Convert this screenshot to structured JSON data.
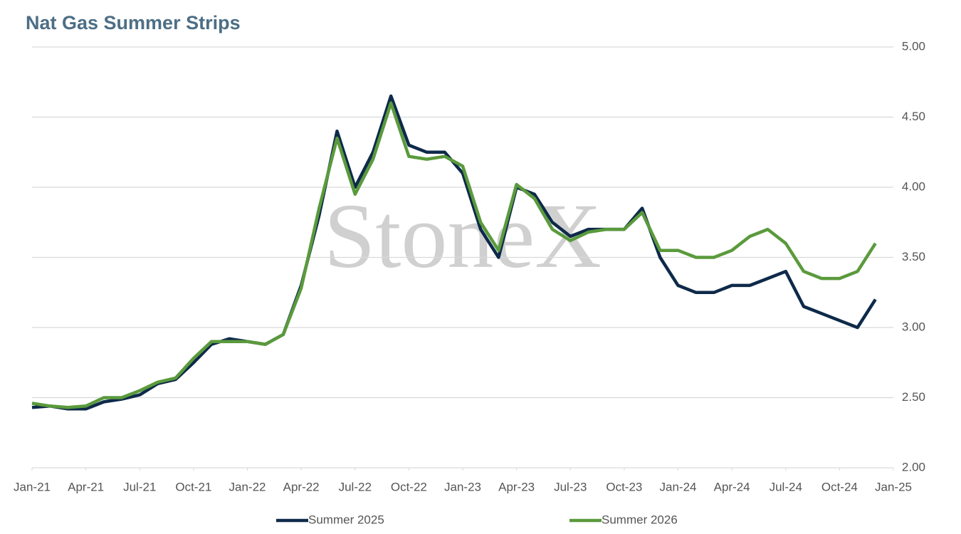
{
  "chart_data": {
    "type": "line",
    "title": "Nat Gas Summer Strips",
    "watermark": "StoneX",
    "x": [
      "2021-01",
      "2021-02",
      "2021-03",
      "2021-04",
      "2021-05",
      "2021-06",
      "2021-07",
      "2021-08",
      "2021-09",
      "2021-10",
      "2021-11",
      "2021-12",
      "2022-01",
      "2022-02",
      "2022-03",
      "2022-04",
      "2022-05",
      "2022-06",
      "2022-07",
      "2022-08",
      "2022-09",
      "2022-10",
      "2022-11",
      "2022-12",
      "2023-01",
      "2023-02",
      "2023-03",
      "2023-04",
      "2023-05",
      "2023-06",
      "2023-07",
      "2023-08",
      "2023-09",
      "2023-10",
      "2023-11",
      "2023-12",
      "2024-01",
      "2024-02",
      "2024-03",
      "2024-04",
      "2024-05",
      "2024-06",
      "2024-07",
      "2024-08",
      "2024-09",
      "2024-10",
      "2024-11",
      "2024-12"
    ],
    "series": [
      {
        "name": "Summer 2025",
        "color": "#0e2a4a",
        "values": [
          2.43,
          2.44,
          2.42,
          2.42,
          2.47,
          2.49,
          2.52,
          2.6,
          2.63,
          2.75,
          2.88,
          2.92,
          2.9,
          2.88,
          2.95,
          3.3,
          3.8,
          4.4,
          4.0,
          4.25,
          4.65,
          4.3,
          4.25,
          4.25,
          4.1,
          3.7,
          3.5,
          4.0,
          3.95,
          3.75,
          3.65,
          3.7,
          3.7,
          3.7,
          3.85,
          3.5,
          3.3,
          3.25,
          3.25,
          3.3,
          3.3,
          3.35,
          3.4,
          3.15,
          3.1,
          3.05,
          3.0,
          3.2
        ]
      },
      {
        "name": "Summer 2026",
        "color": "#5a9a3c",
        "values": [
          2.46,
          2.44,
          2.43,
          2.44,
          2.5,
          2.5,
          2.55,
          2.61,
          2.64,
          2.78,
          2.9,
          2.9,
          2.9,
          2.88,
          2.95,
          3.28,
          3.85,
          4.35,
          3.95,
          4.2,
          4.6,
          4.22,
          4.2,
          4.22,
          4.15,
          3.75,
          3.55,
          4.02,
          3.92,
          3.7,
          3.62,
          3.68,
          3.7,
          3.7,
          3.82,
          3.55,
          3.55,
          3.5,
          3.5,
          3.55,
          3.65,
          3.7,
          3.6,
          3.4,
          3.35,
          3.35,
          3.4,
          3.6
        ]
      }
    ],
    "xlim": [
      "2021-01",
      "2025-01"
    ],
    "xticks": [
      {
        "value": "2021-01",
        "label": "Jan-21"
      },
      {
        "value": "2021-04",
        "label": "Apr-21"
      },
      {
        "value": "2021-07",
        "label": "Jul-21"
      },
      {
        "value": "2021-10",
        "label": "Oct-21"
      },
      {
        "value": "2022-01",
        "label": "Jan-22"
      },
      {
        "value": "2022-04",
        "label": "Apr-22"
      },
      {
        "value": "2022-07",
        "label": "Jul-22"
      },
      {
        "value": "2022-10",
        "label": "Oct-22"
      },
      {
        "value": "2023-01",
        "label": "Jan-23"
      },
      {
        "value": "2023-04",
        "label": "Apr-23"
      },
      {
        "value": "2023-07",
        "label": "Jul-23"
      },
      {
        "value": "2023-10",
        "label": "Oct-23"
      },
      {
        "value": "2024-01",
        "label": "Jan-24"
      },
      {
        "value": "2024-04",
        "label": "Apr-24"
      },
      {
        "value": "2024-07",
        "label": "Jul-24"
      },
      {
        "value": "2024-10",
        "label": "Oct-24"
      },
      {
        "value": "2025-01",
        "label": "Jan-25"
      }
    ],
    "ylim": [
      2,
      5
    ],
    "yticks": [
      {
        "value": 2,
        "label": "2.00"
      },
      {
        "value": 2.5,
        "label": "2.50"
      },
      {
        "value": 3,
        "label": "3.00"
      },
      {
        "value": 3.5,
        "label": "3.50"
      },
      {
        "value": 4,
        "label": "4.00"
      },
      {
        "value": 4.5,
        "label": "4.50"
      },
      {
        "value": 5,
        "label": "5.00"
      }
    ],
    "grid": true
  }
}
